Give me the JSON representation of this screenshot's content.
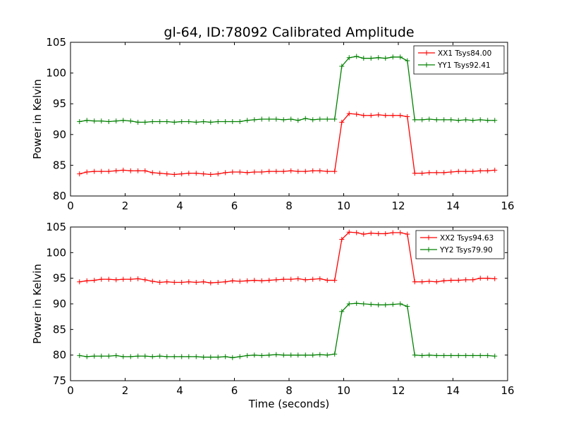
{
  "chart_data": [
    {
      "type": "line",
      "title": "gl-64, ID:78092 Calibrated Amplitude",
      "xlabel": "",
      "ylabel": "Power in Kelvin",
      "xlim": [
        0,
        16
      ],
      "ylim": [
        80,
        105
      ],
      "xticks": [
        "0",
        "2",
        "4",
        "6",
        "8",
        "10",
        "12",
        "14",
        "16"
      ],
      "yticks": [
        "80",
        "85",
        "90",
        "95",
        "100",
        "105"
      ],
      "legend_position": "top-right",
      "marker": "+",
      "x": [
        0.33,
        0.6,
        0.87,
        1.13,
        1.4,
        1.67,
        1.93,
        2.2,
        2.47,
        2.73,
        3.0,
        3.27,
        3.53,
        3.8,
        4.07,
        4.33,
        4.6,
        4.87,
        5.13,
        5.4,
        5.67,
        5.93,
        6.2,
        6.47,
        6.73,
        7.0,
        7.27,
        7.53,
        7.8,
        8.07,
        8.33,
        8.6,
        8.87,
        9.13,
        9.4,
        9.67,
        9.93,
        10.2,
        10.47,
        10.73,
        11.0,
        11.27,
        11.53,
        11.8,
        12.07,
        12.33,
        12.6,
        12.87,
        13.13,
        13.4,
        13.67,
        13.93,
        14.2,
        14.47,
        14.73,
        15.0,
        15.27,
        15.53
      ],
      "series": [
        {
          "name": "XX1 Tsys84.00",
          "color": "#ff0000",
          "values": [
            83.6,
            83.9,
            84.0,
            84.0,
            84.0,
            84.1,
            84.2,
            84.1,
            84.1,
            84.1,
            83.8,
            83.7,
            83.6,
            83.5,
            83.6,
            83.7,
            83.7,
            83.6,
            83.5,
            83.6,
            83.8,
            83.9,
            83.9,
            83.8,
            83.9,
            83.9,
            84.0,
            84.0,
            84.0,
            84.1,
            84.0,
            84.0,
            84.1,
            84.1,
            84.0,
            84.0,
            92.0,
            93.4,
            93.3,
            93.1,
            93.1,
            93.2,
            93.1,
            93.1,
            93.1,
            92.9,
            83.7,
            83.7,
            83.8,
            83.8,
            83.8,
            83.9,
            84.0,
            84.0,
            84.0,
            84.1,
            84.1,
            84.2
          ]
        },
        {
          "name": "YY1 Tsys92.41",
          "color": "#008000",
          "values": [
            92.1,
            92.3,
            92.2,
            92.2,
            92.1,
            92.2,
            92.3,
            92.2,
            92.0,
            92.0,
            92.1,
            92.1,
            92.1,
            92.0,
            92.1,
            92.1,
            92.0,
            92.1,
            92.0,
            92.1,
            92.1,
            92.1,
            92.1,
            92.3,
            92.4,
            92.5,
            92.5,
            92.5,
            92.4,
            92.5,
            92.3,
            92.6,
            92.4,
            92.5,
            92.5,
            92.5,
            101.1,
            102.5,
            102.7,
            102.4,
            102.4,
            102.5,
            102.4,
            102.6,
            102.6,
            102.0,
            92.4,
            92.4,
            92.5,
            92.4,
            92.4,
            92.4,
            92.3,
            92.4,
            92.3,
            92.4,
            92.3,
            92.3
          ]
        }
      ]
    },
    {
      "type": "line",
      "title": "",
      "xlabel": "Time (seconds)",
      "ylabel": "Power in Kelvin",
      "xlim": [
        0,
        16
      ],
      "ylim": [
        75,
        105
      ],
      "xticks": [
        "0",
        "2",
        "4",
        "6",
        "8",
        "10",
        "12",
        "14",
        "16"
      ],
      "yticks": [
        "75",
        "80",
        "85",
        "90",
        "95",
        "100",
        "105"
      ],
      "legend_position": "top-right",
      "marker": "+",
      "x": [
        0.33,
        0.6,
        0.87,
        1.13,
        1.4,
        1.67,
        1.93,
        2.2,
        2.47,
        2.73,
        3.0,
        3.27,
        3.53,
        3.8,
        4.07,
        4.33,
        4.6,
        4.87,
        5.13,
        5.4,
        5.67,
        5.93,
        6.2,
        6.47,
        6.73,
        7.0,
        7.27,
        7.53,
        7.8,
        8.07,
        8.33,
        8.6,
        8.87,
        9.13,
        9.4,
        9.67,
        9.93,
        10.2,
        10.47,
        10.73,
        11.0,
        11.27,
        11.53,
        11.8,
        12.07,
        12.33,
        12.6,
        12.87,
        13.13,
        13.4,
        13.67,
        13.93,
        14.2,
        14.47,
        14.73,
        15.0,
        15.27,
        15.53
      ],
      "series": [
        {
          "name": "XX2 Tsys94.63",
          "color": "#ff0000",
          "values": [
            94.3,
            94.5,
            94.6,
            94.8,
            94.8,
            94.7,
            94.8,
            94.8,
            94.9,
            94.7,
            94.4,
            94.2,
            94.3,
            94.2,
            94.2,
            94.3,
            94.2,
            94.3,
            94.1,
            94.2,
            94.3,
            94.5,
            94.4,
            94.5,
            94.6,
            94.5,
            94.6,
            94.7,
            94.8,
            94.8,
            94.9,
            94.7,
            94.8,
            94.9,
            94.6,
            94.6,
            102.6,
            104.0,
            103.9,
            103.6,
            103.8,
            103.7,
            103.7,
            103.9,
            103.9,
            103.6,
            94.3,
            94.3,
            94.4,
            94.3,
            94.5,
            94.6,
            94.6,
            94.7,
            94.7,
            95.0,
            95.0,
            94.9
          ]
        },
        {
          "name": "YY2 Tsys79.90",
          "color": "#008000",
          "values": [
            79.9,
            79.7,
            79.8,
            79.8,
            79.8,
            79.9,
            79.7,
            79.7,
            79.8,
            79.8,
            79.7,
            79.8,
            79.7,
            79.7,
            79.7,
            79.7,
            79.7,
            79.6,
            79.6,
            79.6,
            79.7,
            79.5,
            79.7,
            79.9,
            80.0,
            79.9,
            80.0,
            80.1,
            80.0,
            80.0,
            80.0,
            80.0,
            80.0,
            80.1,
            80.0,
            80.2,
            88.5,
            90.0,
            90.1,
            90.0,
            89.9,
            89.8,
            89.8,
            89.9,
            90.0,
            89.5,
            80.0,
            79.9,
            80.0,
            79.9,
            79.9,
            79.9,
            79.9,
            79.9,
            79.9,
            79.9,
            79.9,
            79.8
          ]
        }
      ]
    }
  ]
}
